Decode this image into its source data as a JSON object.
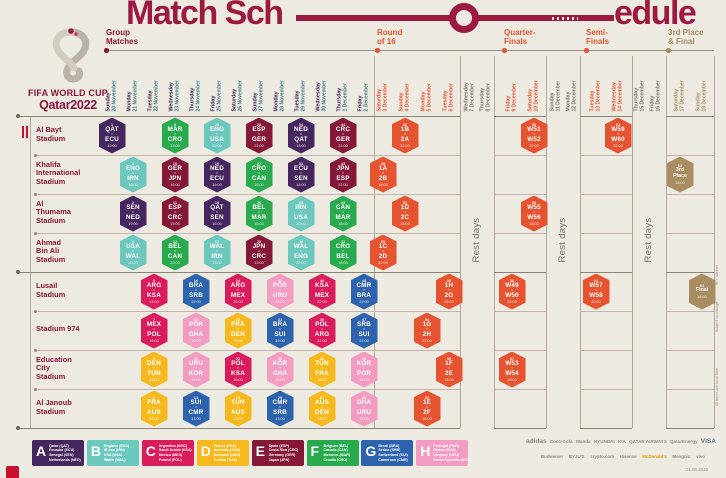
{
  "title": {
    "left": "Match Sch",
    "right": "edule"
  },
  "logo": {
    "brand_line1": "FIFA WORLD CUP",
    "brand_line2": "Qatar2022"
  },
  "section_headers": [
    {
      "id": "group",
      "line1": "Group",
      "line2": "Matches"
    },
    {
      "id": "round-of-16",
      "line1": "Round",
      "line2": "of 16"
    },
    {
      "id": "quarter-finals",
      "line1": "Quarter-",
      "line2": "Finals"
    },
    {
      "id": "semi-finals",
      "line1": "Semi-",
      "line2": "Finals"
    },
    {
      "id": "third-place-final",
      "line1": "3rd Place",
      "line2": "& Final"
    }
  ],
  "rest_days_label": "Rest days",
  "side_notes": [
    "W = Winner",
    "Subject to change",
    "All times are local time"
  ],
  "footer_note": "11.08.2022",
  "columns": [
    {
      "w": "Sunday",
      "d": "20 November",
      "type": "group"
    },
    {
      "w": "Monday",
      "d": "21 November",
      "type": "group"
    },
    {
      "w": "Tuesday",
      "d": "22 November",
      "type": "group"
    },
    {
      "w": "Wednesday",
      "d": "23 November",
      "type": "group"
    },
    {
      "w": "Thursday",
      "d": "24 November",
      "type": "group"
    },
    {
      "w": "Friday",
      "d": "25 November",
      "type": "group"
    },
    {
      "w": "Saturday",
      "d": "26 November",
      "type": "group"
    },
    {
      "w": "Sunday",
      "d": "27 November",
      "type": "group"
    },
    {
      "w": "Monday",
      "d": "28 November",
      "type": "group"
    },
    {
      "w": "Tuesday",
      "d": "29 November",
      "type": "group"
    },
    {
      "w": "Wednesday",
      "d": "30 November",
      "type": "group"
    },
    {
      "w": "Thursday",
      "d": "1 December",
      "type": "group"
    },
    {
      "w": "Friday",
      "d": "2 December",
      "type": "group"
    },
    {
      "w": "Saturday",
      "d": "3 December",
      "type": "r16"
    },
    {
      "w": "Sunday",
      "d": "4 December",
      "type": "r16"
    },
    {
      "w": "Monday",
      "d": "5 December",
      "type": "r16"
    },
    {
      "w": "Tuesday",
      "d": "6 December",
      "type": "r16"
    },
    {
      "w": "Wednesday",
      "d": "7 December",
      "type": "rest"
    },
    {
      "w": "Thursday",
      "d": "8 December",
      "type": "rest"
    },
    {
      "w": "Friday",
      "d": "9 December",
      "type": "qf"
    },
    {
      "w": "Saturday",
      "d": "10 December",
      "type": "qf"
    },
    {
      "w": "Sunday",
      "d": "11 December",
      "type": "rest"
    },
    {
      "w": "Monday",
      "d": "12 December",
      "type": "rest"
    },
    {
      "w": "Tuesday",
      "d": "13 December",
      "type": "sf"
    },
    {
      "w": "Wednesday",
      "d": "14 December",
      "type": "sf"
    },
    {
      "w": "Thursday",
      "d": "15 December",
      "type": "rest"
    },
    {
      "w": "Friday",
      "d": "16 December",
      "type": "rest"
    },
    {
      "w": "Saturday",
      "d": "17 December",
      "type": "final"
    },
    {
      "w": "Sunday",
      "d": "18 December",
      "type": "final"
    }
  ],
  "stadiums": [
    {
      "name": "Al Bayt Stadium",
      "lines": [
        "Al Bayt",
        "Stadium"
      ]
    },
    {
      "name": "Khalifa International Stadium",
      "lines": [
        "Khalifa",
        "International",
        "Stadium"
      ]
    },
    {
      "name": "Al Thumama Stadium",
      "lines": [
        "Al",
        "Thumama",
        "Stadium"
      ]
    },
    {
      "name": "Ahmad Bin Ali Stadium",
      "lines": [
        "Ahmad",
        "Bin Ali",
        "Stadium"
      ]
    },
    {
      "name": "Lusail Stadium",
      "lines": [
        "Lusail",
        "Stadium"
      ]
    },
    {
      "name": "Stadium 974",
      "lines": [
        "Stadium 974"
      ]
    },
    {
      "name": "Education City Stadium",
      "lines": [
        "Education",
        "City",
        "Stadium"
      ]
    },
    {
      "name": "Al Janoub Stadium",
      "lines": [
        "Al Janoub",
        "Stadium"
      ]
    }
  ],
  "matches": [
    {
      "r": 0,
      "c": 0,
      "n": "1",
      "a": "QAT",
      "b": "ECU",
      "t": "19:00",
      "g": "A"
    },
    {
      "r": 0,
      "c": 3,
      "n": "9",
      "a": "MAR",
      "b": "CRO",
      "t": "13:00",
      "g": "F"
    },
    {
      "r": 0,
      "c": 5,
      "n": "20",
      "a": "ENG",
      "b": "USA",
      "t": "22:00",
      "g": "B"
    },
    {
      "r": 0,
      "c": 7,
      "n": "28",
      "a": "ESP",
      "b": "GER",
      "t": "22:00",
      "g": "E"
    },
    {
      "r": 0,
      "c": 9,
      "n": "34",
      "a": "NED",
      "b": "QAT",
      "t": "18:00",
      "g": "A"
    },
    {
      "r": 0,
      "c": 11,
      "n": "44",
      "a": "CRC",
      "b": "GER",
      "t": "22:00",
      "g": "E"
    },
    {
      "r": 0,
      "c": 14,
      "n": "52",
      "a": "1B",
      "b": "2A",
      "t": "22:00",
      "g": "KO"
    },
    {
      "r": 0,
      "c": 20,
      "n": "60",
      "a": "W51",
      "b": "W52",
      "t": "22:00",
      "g": "KO"
    },
    {
      "r": 0,
      "c": 24,
      "n": "62",
      "a": "W59",
      "b": "W60",
      "t": "22:00",
      "g": "KO"
    },
    {
      "r": 1,
      "c": 1,
      "n": "3",
      "a": "ENG",
      "b": "IRN",
      "t": "16:00",
      "g": "B"
    },
    {
      "r": 1,
      "c": 3,
      "n": "10",
      "a": "GER",
      "b": "JPN",
      "t": "16:00",
      "g": "E"
    },
    {
      "r": 1,
      "c": 5,
      "n": "19",
      "a": "NED",
      "b": "ECU",
      "t": "19:00",
      "g": "A"
    },
    {
      "r": 1,
      "c": 7,
      "n": "27",
      "a": "CRO",
      "b": "CAN",
      "t": "19:00",
      "g": "F"
    },
    {
      "r": 1,
      "c": 9,
      "n": "33",
      "a": "ECU",
      "b": "SEN",
      "t": "18:00",
      "g": "A"
    },
    {
      "r": 1,
      "c": 11,
      "n": "43",
      "a": "JPN",
      "b": "ESP",
      "t": "22:00",
      "g": "E"
    },
    {
      "r": 1,
      "c": 13,
      "n": "49",
      "a": "1A",
      "b": "2B",
      "t": "18:00",
      "g": "KO"
    },
    {
      "r": 1,
      "c": 27,
      "n": "63",
      "label": "3rd Place",
      "t": "18:00",
      "g": "GOLD"
    },
    {
      "r": 2,
      "c": 1,
      "n": "2",
      "a": "SEN",
      "b": "NED",
      "t": "19:00",
      "g": "A"
    },
    {
      "r": 2,
      "c": 3,
      "n": "11",
      "a": "ESP",
      "b": "CRC",
      "t": "19:00",
      "g": "E"
    },
    {
      "r": 2,
      "c": 5,
      "n": "18",
      "a": "QAT",
      "b": "SEN",
      "t": "16:00",
      "g": "A"
    },
    {
      "r": 2,
      "c": 7,
      "n": "26",
      "a": "BEL",
      "b": "MAR",
      "t": "16:00",
      "g": "F"
    },
    {
      "r": 2,
      "c": 9,
      "n": "35",
      "a": "IRN",
      "b": "USA",
      "t": "22:00",
      "g": "B"
    },
    {
      "r": 2,
      "c": 11,
      "n": "42",
      "a": "CAN",
      "b": "MAR",
      "t": "18:00",
      "g": "F"
    },
    {
      "r": 2,
      "c": 14,
      "n": "51",
      "a": "1D",
      "b": "2C",
      "t": "18:00",
      "g": "KO"
    },
    {
      "r": 2,
      "c": 20,
      "n": "59",
      "a": "W55",
      "b": "W56",
      "t": "18:00",
      "g": "KO"
    },
    {
      "r": 3,
      "c": 1,
      "n": "4",
      "a": "USA",
      "b": "WAL",
      "t": "22:00",
      "g": "B"
    },
    {
      "r": 3,
      "c": 3,
      "n": "12",
      "a": "BEL",
      "b": "CAN",
      "t": "22:00",
      "g": "F"
    },
    {
      "r": 3,
      "c": 5,
      "n": "17",
      "a": "WAL",
      "b": "IRN",
      "t": "13:00",
      "g": "B"
    },
    {
      "r": 3,
      "c": 7,
      "n": "25",
      "a": "JPN",
      "b": "CRC",
      "t": "13:00",
      "g": "E"
    },
    {
      "r": 3,
      "c": 9,
      "n": "36",
      "a": "WAL",
      "b": "ENG",
      "t": "22:00",
      "g": "B"
    },
    {
      "r": 3,
      "c": 11,
      "n": "41",
      "a": "CRO",
      "b": "BEL",
      "t": "18:00",
      "g": "F"
    },
    {
      "r": 3,
      "c": 13,
      "n": "50",
      "a": "1C",
      "b": "2D",
      "t": "22:00",
      "g": "KO"
    },
    {
      "r": 4,
      "c": 2,
      "n": "5",
      "a": "ARG",
      "b": "KSA",
      "t": "13:00",
      "g": "C"
    },
    {
      "r": 4,
      "c": 4,
      "n": "16",
      "a": "BRA",
      "b": "SRB",
      "t": "22:00",
      "g": "G"
    },
    {
      "r": 4,
      "c": 6,
      "n": "24",
      "a": "ARG",
      "b": "MEX",
      "t": "22:00",
      "g": "C"
    },
    {
      "r": 4,
      "c": 8,
      "n": "32",
      "a": "POR",
      "b": "URU",
      "t": "22:00",
      "g": "H"
    },
    {
      "r": 4,
      "c": 10,
      "n": "40",
      "a": "KSA",
      "b": "MEX",
      "t": "22:00",
      "g": "C"
    },
    {
      "r": 4,
      "c": 12,
      "n": "48",
      "a": "CMR",
      "b": "BRA",
      "t": "22:00",
      "g": "G"
    },
    {
      "r": 4,
      "c": 16,
      "n": "56",
      "a": "1H",
      "b": "2G",
      "t": "22:00",
      "g": "KO"
    },
    {
      "r": 4,
      "c": 19,
      "n": "58",
      "a": "W49",
      "b": "W50",
      "t": "22:00",
      "g": "KO"
    },
    {
      "r": 4,
      "c": 23,
      "n": "61",
      "a": "W57",
      "b": "W58",
      "t": "22:00",
      "g": "KO"
    },
    {
      "r": 4,
      "c": 28,
      "n": "64",
      "label": "Final",
      "t": "18:00",
      "g": "GOLD"
    },
    {
      "r": 5,
      "c": 2,
      "n": "7",
      "a": "MEX",
      "b": "POL",
      "t": "19:00",
      "g": "C"
    },
    {
      "r": 5,
      "c": 4,
      "n": "15",
      "a": "POR",
      "b": "GHA",
      "t": "19:00",
      "g": "H"
    },
    {
      "r": 5,
      "c": 6,
      "n": "23",
      "a": "FRA",
      "b": "DEN",
      "t": "19:00",
      "g": "D"
    },
    {
      "r": 5,
      "c": 8,
      "n": "31",
      "a": "BRA",
      "b": "SUI",
      "t": "19:00",
      "g": "G"
    },
    {
      "r": 5,
      "c": 10,
      "n": "39",
      "a": "POL",
      "b": "ARG",
      "t": "22:00",
      "g": "C"
    },
    {
      "r": 5,
      "c": 12,
      "n": "47",
      "a": "SRB",
      "b": "SUI",
      "t": "22:00",
      "g": "G"
    },
    {
      "r": 5,
      "c": 15,
      "n": "54",
      "a": "1G",
      "b": "2H",
      "t": "22:00",
      "g": "KO"
    },
    {
      "r": 6,
      "c": 2,
      "n": "6",
      "a": "DEN",
      "b": "TUN",
      "t": "16:00",
      "g": "D"
    },
    {
      "r": 6,
      "c": 4,
      "n": "14",
      "a": "URU",
      "b": "KOR",
      "t": "16:00",
      "g": "H"
    },
    {
      "r": 6,
      "c": 6,
      "n": "22",
      "a": "POL",
      "b": "KSA",
      "t": "16:00",
      "g": "C"
    },
    {
      "r": 6,
      "c": 8,
      "n": "30",
      "a": "KOR",
      "b": "GHA",
      "t": "16:00",
      "g": "H"
    },
    {
      "r": 6,
      "c": 10,
      "n": "38",
      "a": "TUN",
      "b": "FRA",
      "t": "18:00",
      "g": "D"
    },
    {
      "r": 6,
      "c": 12,
      "n": "46",
      "a": "KOR",
      "b": "POR",
      "t": "18:00",
      "g": "H"
    },
    {
      "r": 6,
      "c": 16,
      "n": "55",
      "a": "1F",
      "b": "2E",
      "t": "18:00",
      "g": "KO"
    },
    {
      "r": 6,
      "c": 19,
      "n": "57",
      "a": "W53",
      "b": "W54",
      "t": "18:00",
      "g": "KO"
    },
    {
      "r": 7,
      "c": 2,
      "n": "8",
      "a": "FRA",
      "b": "AUS",
      "t": "22:00",
      "g": "D"
    },
    {
      "r": 7,
      "c": 4,
      "n": "13",
      "a": "SUI",
      "b": "CMR",
      "t": "13:00",
      "g": "G"
    },
    {
      "r": 7,
      "c": 6,
      "n": "21",
      "a": "TUN",
      "b": "AUS",
      "t": "13:00",
      "g": "D"
    },
    {
      "r": 7,
      "c": 8,
      "n": "29",
      "a": "CMR",
      "b": "SRB",
      "t": "13:00",
      "g": "G"
    },
    {
      "r": 7,
      "c": 10,
      "n": "37",
      "a": "AUS",
      "b": "DEN",
      "t": "18:00",
      "g": "D"
    },
    {
      "r": 7,
      "c": 12,
      "n": "45",
      "a": "GHA",
      "b": "URU",
      "t": "18:00",
      "g": "H"
    },
    {
      "r": 7,
      "c": 15,
      "n": "53",
      "a": "1E",
      "b": "2F",
      "t": "18:00",
      "g": "KO"
    }
  ],
  "legend": [
    {
      "letter": "A",
      "teams": [
        "Qatar (QAT)",
        "Ecuador (ECU)",
        "Senegal (SEN)",
        "Netherlands (NED)"
      ]
    },
    {
      "letter": "B",
      "teams": [
        "England (ENG)",
        "IR Iran (IRN)",
        "USA (USA)",
        "Wales (WAL)"
      ]
    },
    {
      "letter": "C",
      "teams": [
        "Argentina (ARG)",
        "Saudi Arabia (KSA)",
        "Mexico (MEX)",
        "Poland (POL)"
      ]
    },
    {
      "letter": "D",
      "teams": [
        "France (FRA)",
        "Australia (AUS)",
        "Denmark (DEN)",
        "Tunisia (TUN)"
      ]
    },
    {
      "letter": "E",
      "teams": [
        "Spain (ESP)",
        "Costa Rica (CRC)",
        "Germany (GER)",
        "Japan (JPN)"
      ]
    },
    {
      "letter": "F",
      "teams": [
        "Belgium (BEL)",
        "Canada (CAN)",
        "Morocco (MAR)",
        "Croatia (CRO)"
      ]
    },
    {
      "letter": "G",
      "teams": [
        "Brazil (BRA)",
        "Serbia (SRB)",
        "Switzerland (SUI)",
        "Cameroon (CMR)"
      ]
    },
    {
      "letter": "H",
      "teams": [
        "Portugal (POR)",
        "Ghana (GHA)",
        "Uruguay (URU)",
        "Korea Republic (KOR)"
      ]
    }
  ],
  "sponsors_row1": [
    "adidas",
    "Coca-Cola",
    "Wanda",
    "HYUNDAI",
    "KIA",
    "QATAR AIRWAYS",
    "QatarEnergy",
    "VISA"
  ],
  "sponsors_row2": [
    "Budweiser",
    "BYJU'S",
    "crypto.com",
    "Hisense",
    "McDonald's",
    "Mengniu",
    "vivo"
  ],
  "colors": {
    "background": "#edeae2",
    "title": "#9c1941",
    "maroon": "#8a1538",
    "orange": "#e55330",
    "gold": "#a78d61",
    "weekday_text": "#3f2450",
    "date_text": "#3e7d80",
    "rest_text": "#716d63",
    "groups": {
      "A": "#45265e",
      "B": "#6cc8bc",
      "C": "#da1c5c",
      "D": "#f5b91e",
      "E": "#851838",
      "F": "#29aa4e",
      "G": "#2d63ad",
      "H": "#f19cc0",
      "KO": "#e55330",
      "GOLD": "#a78d61"
    }
  }
}
